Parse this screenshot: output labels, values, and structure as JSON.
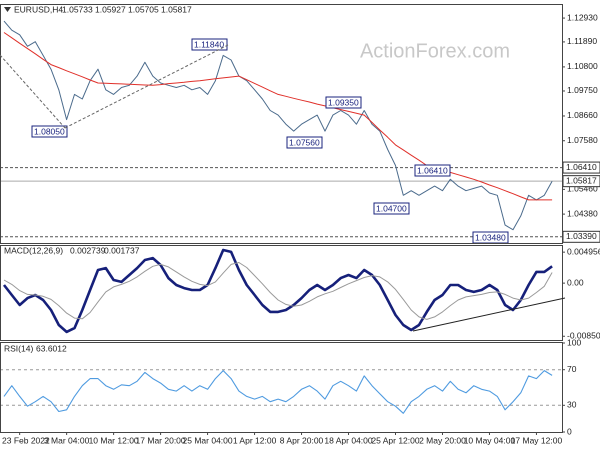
{
  "chart_data": [
    {
      "type": "line",
      "title": "EURUSD,H4",
      "header_values": [
        1.05733,
        1.05927,
        1.05705,
        1.05817
      ],
      "watermark": "ActionForex.com",
      "ylim": [
        1.0312,
        1.135
      ],
      "yticks": [
        {
          "value": 1.1293,
          "label": "1.12930"
        },
        {
          "value": 1.1189,
          "label": "1.11890"
        },
        {
          "value": 1.108,
          "label": "1.10800"
        },
        {
          "value": 1.0975,
          "label": "1.09750"
        },
        {
          "value": 1.0866,
          "label": "1.08660"
        },
        {
          "value": 1.0758,
          "label": "1.07580"
        },
        {
          "value": 1.0546,
          "label": "1.05460"
        },
        {
          "value": 1.0438,
          "label": "1.04380"
        }
      ],
      "levels": [
        {
          "value": 1.0641,
          "label": "1.06410"
        },
        {
          "value": 1.05817,
          "label": "1.05817"
        },
        {
          "value": 1.0339,
          "label": "1.03390"
        }
      ],
      "annotations": [
        "1.08050",
        "1.11840",
        "1.09350",
        "1.07560",
        "1.06410",
        "1.04700",
        "1.03480"
      ],
      "series": [
        {
          "name": "EURUSD",
          "color": "#4b6b8c",
          "values": [
            1.128,
            1.124,
            1.122,
            1.117,
            1.119,
            1.113,
            1.107,
            1.098,
            1.085,
            1.096,
            1.094,
            1.102,
            1.107,
            1.098,
            1.096,
            1.099,
            1.1,
            1.104,
            1.11,
            1.104,
            1.101,
            1.1,
            1.099,
            1.1,
            1.098,
            1.099,
            1.096,
            1.102,
            1.113,
            1.111,
            1.104,
            1.102,
            1.098,
            1.094,
            1.089,
            1.087,
            1.083,
            1.08,
            1.083,
            1.085,
            1.087,
            1.08,
            1.087,
            1.089,
            1.087,
            1.083,
            1.089,
            1.083,
            1.08,
            1.072,
            1.065,
            1.052,
            1.054,
            1.052,
            1.054,
            1.056,
            1.054,
            1.059,
            1.056,
            1.054,
            1.055,
            1.056,
            1.053,
            1.052,
            1.039,
            1.037,
            1.043,
            1.052,
            1.05,
            1.052,
            1.05817
          ]
        },
        {
          "name": "MA",
          "color": "#e0302a",
          "values": [
            1.123,
            1.1207,
            1.1183,
            1.116,
            1.1137,
            1.1113,
            1.109,
            1.1077,
            1.1063,
            1.105,
            1.1037,
            1.1023,
            1.101,
            1.1009,
            1.1007,
            1.1006,
            1.1004,
            1.1003,
            1.1001,
            1.1,
            1.1003,
            1.1007,
            1.101,
            1.1013,
            1.1017,
            1.102,
            1.1024,
            1.1028,
            1.1032,
            1.1036,
            1.104,
            1.1024,
            1.1008,
            1.0992,
            1.0976,
            1.096,
            1.0952,
            1.0943,
            1.0935,
            1.0927,
            1.0918,
            1.091,
            1.0902,
            1.0894,
            1.0886,
            1.0878,
            1.087,
            1.0838,
            1.0805,
            1.0773,
            1.074,
            1.0718,
            1.0695,
            1.0673,
            1.065,
            1.064,
            1.063,
            1.062,
            1.061,
            1.06,
            1.059,
            1.0578,
            1.0565,
            1.0553,
            1.054,
            1.0527,
            1.0513,
            1.05,
            1.05,
            1.05,
            1.05
          ]
        }
      ]
    },
    {
      "type": "line",
      "title": "MACD(12,26,9)",
      "header_values": [
        0.002739,
        0.001737
      ],
      "ylim": [
        -0.0091,
        0.0061
      ],
      "yticks": [
        0.004956,
        {
          "value": 0,
          "label": "0.00"
        },
        -0.008501
      ],
      "series": [
        {
          "name": "MACD",
          "color": "#16207a",
          "values": [
            -0.0003,
            -0.0019,
            -0.0035,
            -0.0024,
            -0.0019,
            -0.0027,
            -0.0043,
            -0.0067,
            -0.0078,
            -0.0072,
            -0.0043,
            -0.0011,
            0.0021,
            0.0024,
            0.0005,
            0.0002,
            0.0013,
            0.0024,
            0.0037,
            0.004,
            0.0029,
            0.0008,
            -0.0003,
            -0.0008,
            -0.0011,
            -0.0011,
            -0.0003,
            0.0024,
            0.0053,
            0.005,
            0.0021,
            -0.0003,
            -0.0019,
            -0.0035,
            -0.0046,
            -0.0046,
            -0.0043,
            -0.0035,
            -0.0024,
            -0.0011,
            -0.0003,
            -0.0011,
            -0.0003,
            0.0008,
            0.0013,
            0.0008,
            0.0021,
            0.0013,
            -0.0003,
            -0.0027,
            -0.0051,
            -0.0067,
            -0.0075,
            -0.0067,
            -0.0046,
            -0.0027,
            -0.0019,
            -0.0003,
            -0.0003,
            -0.0011,
            -0.0014,
            -0.0011,
            -0.0003,
            -0.0011,
            -0.0035,
            -0.0043,
            -0.0027,
            -0.0003,
            0.0018,
            0.0018,
            0.0027
          ]
        },
        {
          "name": "Signal",
          "color": "#9a9a9a",
          "values": [
            0.0005,
            -0.0002,
            -0.0012,
            -0.0018,
            -0.0019,
            -0.0021,
            -0.0026,
            -0.0036,
            -0.0048,
            -0.0056,
            -0.0057,
            -0.0047,
            -0.003,
            -0.0014,
            -0.0006,
            -0.0002,
            0.0003,
            0.001,
            0.0019,
            0.0027,
            0.003,
            0.0026,
            0.0018,
            0.001,
            0.0003,
            -0.0002,
            -0.0004,
            0.0002,
            0.0016,
            0.003,
            0.0033,
            0.0025,
            0.0012,
            -0.0001,
            -0.0015,
            -0.0027,
            -0.0034,
            -0.0037,
            -0.0035,
            -0.0029,
            -0.0022,
            -0.0017,
            -0.0013,
            -0.0007,
            -0.0001,
            0.0004,
            0.0009,
            0.0012,
            0.001,
            0.0002,
            -0.001,
            -0.0026,
            -0.0043,
            -0.0054,
            -0.0058,
            -0.0054,
            -0.0046,
            -0.0036,
            -0.0027,
            -0.0022,
            -0.002,
            -0.0018,
            -0.0015,
            -0.0014,
            -0.0018,
            -0.0024,
            -0.0027,
            -0.0024,
            -0.0015,
            -0.0005,
            0.0017
          ]
        }
      ]
    },
    {
      "type": "line",
      "title": "RSI(14)",
      "header_values": [
        63.6012
      ],
      "ylim": [
        0,
        100
      ],
      "yticks": [
        100,
        70,
        30,
        0
      ],
      "grid": true,
      "categories": [
        null,
        null,
        "23 Feb 2022",
        null,
        null,
        null,
        null,
        null,
        "3 Mar 04:00",
        null,
        null,
        null,
        null,
        null,
        "10 Mar 12:00",
        null,
        null,
        null,
        null,
        null,
        "17 Mar 20:00",
        null,
        null,
        null,
        null,
        null,
        "25 Mar 04:00",
        null,
        null,
        null,
        null,
        null,
        "1 Apr 12:00",
        null,
        null,
        null,
        null,
        null,
        "8 Apr 20:00",
        null,
        null,
        null,
        null,
        null,
        "18 Apr 04:00",
        null,
        null,
        null,
        null,
        null,
        "25 Apr 12:00",
        null,
        null,
        null,
        null,
        null,
        "2 May 20:00",
        null,
        null,
        null,
        null,
        null,
        "10 May 04:00",
        null,
        null,
        null,
        null,
        null,
        "17 May 12:00",
        null,
        null
      ],
      "series": [
        {
          "name": "RSI",
          "color": "#4f9be0",
          "values": [
            40,
            52,
            40,
            29,
            34,
            40,
            34,
            23,
            25,
            40,
            52,
            60,
            60,
            52,
            48,
            53,
            52,
            57,
            67,
            60,
            55,
            48,
            46,
            52,
            46,
            52,
            48,
            60,
            69,
            60,
            46,
            40,
            37,
            40,
            34,
            37,
            34,
            40,
            48,
            52,
            46,
            37,
            52,
            57,
            52,
            46,
            63,
            52,
            43,
            34,
            29,
            21,
            34,
            40,
            48,
            52,
            46,
            57,
            48,
            44,
            52,
            48,
            46,
            40,
            25,
            34,
            44,
            63,
            60,
            69,
            63.6012
          ]
        }
      ]
    }
  ]
}
